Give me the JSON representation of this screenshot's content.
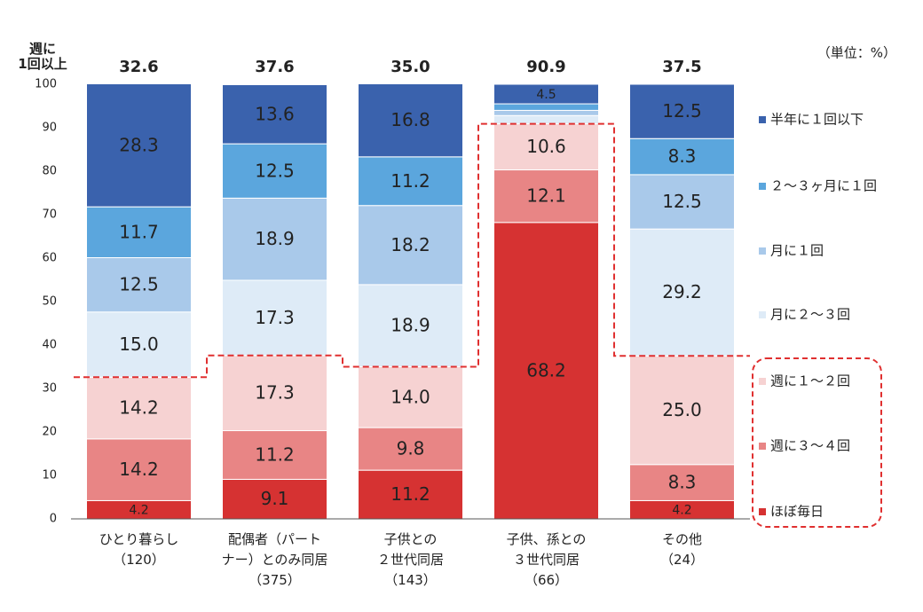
{
  "chart_data": {
    "type": "stacked_bar",
    "unit_label": "（単位：%）",
    "categories": [
      "ひとり暮らし\n（120）",
      "配偶者（パート\nナー）とのみ同居\n（375）",
      "子供との\n２世代同居\n（143）",
      "子供、孫との\n３世代同居\n（66）",
      "その他\n（24）"
    ],
    "series": [
      {
        "name": "ほぼ毎日",
        "color": "#d63232",
        "values": [
          4.2,
          9.1,
          11.2,
          68.2,
          4.2
        ],
        "value_labels": [
          "4.2",
          "9.1",
          "11.2",
          "68.2",
          "4.2"
        ]
      },
      {
        "name": "週に３～４回",
        "color": "#e88585",
        "values": [
          14.2,
          11.2,
          9.8,
          12.1,
          8.3
        ],
        "value_labels": [
          "14.2",
          "11.2",
          "9.8",
          "12.1",
          "8.3"
        ]
      },
      {
        "name": "週に１～２回",
        "color": "#f6d2d2",
        "values": [
          14.2,
          17.3,
          14.0,
          10.6,
          25.0
        ],
        "value_labels": [
          "14.2",
          "17.3",
          "14.0",
          "10.6",
          "25.0"
        ]
      },
      {
        "name": "月に２～３回",
        "color": "#deebf7",
        "values": [
          15.0,
          17.3,
          18.9,
          1.9,
          29.2
        ],
        "value_labels": [
          "15.0",
          "17.3",
          "18.9",
          null,
          "29.2"
        ]
      },
      {
        "name": "月に１回",
        "color": "#a9c9ea",
        "values": [
          12.5,
          18.9,
          18.2,
          1.2,
          12.5
        ],
        "value_labels": [
          "12.5",
          "18.9",
          "18.2",
          null,
          "12.5"
        ]
      },
      {
        "name": "２～３ヶ月に１回",
        "color": "#5ba6dd",
        "values": [
          11.7,
          12.5,
          11.2,
          1.5,
          8.3
        ],
        "value_labels": [
          "11.7",
          "12.5",
          "11.2",
          null,
          "8.3"
        ]
      },
      {
        "name": "半年に１回以下",
        "color": "#3a62ad",
        "values": [
          28.3,
          13.6,
          16.8,
          4.5,
          12.5
        ],
        "value_labels": [
          "28.3",
          "13.6",
          "16.8",
          "4.5",
          "12.5"
        ]
      }
    ],
    "totals": {
      "name": "週に\n1回以上",
      "color": "#e03030",
      "values": [
        32.6,
        37.6,
        35.0,
        90.9,
        37.5
      ],
      "value_labels": [
        "32.6",
        "37.6",
        "35.0",
        "90.9",
        "37.5"
      ]
    },
    "ylim": [
      0,
      100
    ],
    "yticks": [
      0,
      10,
      20,
      30,
      40,
      50,
      60,
      70,
      80,
      90,
      100
    ]
  }
}
